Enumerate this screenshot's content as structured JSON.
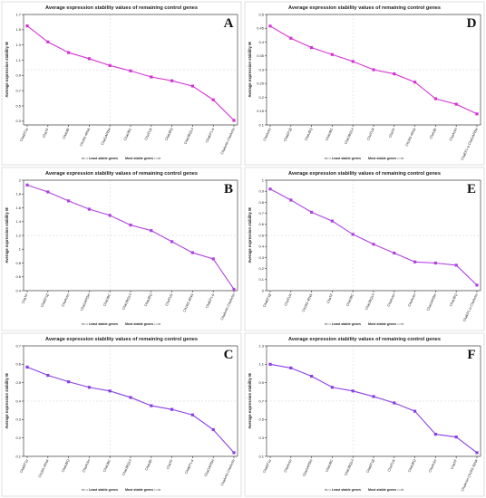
{
  "figure": {
    "footer": {
      "left": "<:::: Least stable genes",
      "right": "Most stable genes ::::>"
    }
  },
  "chart_data": [
    {
      "letter": "A",
      "type": "line",
      "title": "Average expression stability values of remaining control genes",
      "xlabel": "",
      "ylabel": "Average expression stability M",
      "ylim": [
        0.25,
        1.7
      ],
      "yticks": [
        0.3,
        0.5,
        0.7,
        0.9,
        1.1,
        1.3,
        1.5,
        1.7
      ],
      "color": "#d633d6",
      "categories": [
        "ChaEF1α",
        "ChaTF",
        "ChaUBi",
        "Ch18S rRNA",
        "ChaGAPDH",
        "ChaUBC",
        "ChaTUA",
        "ChaUBQ",
        "ChaUBQ14",
        "ChaEF1-α",
        "ChaActin ChaActin"
      ],
      "values": [
        1.55,
        1.34,
        1.2,
        1.12,
        1.03,
        0.96,
        0.88,
        0.83,
        0.76,
        0.58,
        0.31
      ]
    },
    {
      "letter": "D",
      "type": "line",
      "title": "Average expression stability values of remaining control genes",
      "xlabel": "",
      "ylabel": "Average expression stability M",
      "ylim": [
        0.1,
        0.5
      ],
      "yticks": [
        0.1,
        0.15,
        0.2,
        0.25,
        0.3,
        0.35,
        0.4,
        0.45,
        0.5
      ],
      "color": "#d633d6",
      "categories": [
        "ChaActin",
        "ChaEF1β",
        "ChaUBQ",
        "ChaUBC",
        "ChaUBQ14",
        "ChaTUA",
        "ChaTF",
        "Ch18S rRNA",
        "ChaUBi",
        "ChaActin",
        "ChaEF1-α ChaGAPDH"
      ],
      "values": [
        0.458,
        0.414,
        0.38,
        0.355,
        0.33,
        0.3,
        0.285,
        0.255,
        0.195,
        0.175,
        0.14
      ]
    },
    {
      "letter": "B",
      "type": "line",
      "title": "Average expression stability values of remaining control genes",
      "xlabel": "",
      "ylabel": "Average expression stability M",
      "ylim": [
        0.4,
        2.0
      ],
      "yticks": [
        0.4,
        0.6,
        0.8,
        1.0,
        1.2,
        1.4,
        1.6,
        1.8,
        2.0
      ],
      "color": "#b042e0",
      "categories": [
        "ChaTF",
        "ChaEF1β",
        "ChaActin",
        "ChaGAPDH",
        "ChaUBC",
        "ChaUBQ14",
        "ChaUBQ",
        "ChaTUA",
        "Ch18S rRNA",
        "ChaEF1-α",
        "ChaActin ChaActin"
      ],
      "values": [
        1.93,
        1.83,
        1.7,
        1.58,
        1.49,
        1.35,
        1.27,
        1.11,
        0.95,
        0.86,
        0.42
      ]
    },
    {
      "letter": "E",
      "type": "line",
      "title": "Average expression stability values of remaining control genes",
      "xlabel": "",
      "ylabel": "Average expression stability M",
      "ylim": [
        0.0,
        1.0
      ],
      "yticks": [
        0.0,
        0.1,
        0.2,
        0.3,
        0.4,
        0.5,
        0.6,
        0.7,
        0.8,
        0.9,
        1.0
      ],
      "color": "#b042e0",
      "categories": [
        "ChaEF1β",
        "ChaTUA",
        "Ch18S rRNA",
        "ChaTF",
        "ChaUBC",
        "ChaUBQ14",
        "ChaActin",
        "ChaActin",
        "ChaGAPDH",
        "ChaUBQ",
        "ChaEF1-α ChaActin"
      ],
      "values": [
        0.92,
        0.82,
        0.71,
        0.63,
        0.51,
        0.42,
        0.34,
        0.26,
        0.25,
        0.23,
        0.05
      ]
    },
    {
      "letter": "C",
      "type": "line",
      "title": "Average expression stability values of remaining control genes",
      "xlabel": "",
      "ylabel": "Average expression stability M",
      "ylim": [
        0.1,
        0.7
      ],
      "yticks": [
        0.1,
        0.2,
        0.3,
        0.4,
        0.5,
        0.6,
        0.7
      ],
      "color": "#8a3fe6",
      "categories": [
        "ChaEF1α",
        "Ch18S rRNA",
        "ChaUBQ",
        "ChaActin",
        "ChaUBC",
        "ChaUBQ14",
        "ChaUBi",
        "ChaTF",
        "ChaEF1-α",
        "ChaGAPDH",
        "ChaActin ChaActin"
      ],
      "values": [
        0.585,
        0.54,
        0.505,
        0.475,
        0.455,
        0.42,
        0.375,
        0.355,
        0.325,
        0.245,
        0.12
      ]
    },
    {
      "letter": "F",
      "type": "line",
      "title": "Average expression stability values of remaining control genes",
      "xlabel": "",
      "ylabel": "Average expression stability M",
      "ylim": [
        0.1,
        1.3
      ],
      "yticks": [
        0.1,
        0.3,
        0.5,
        0.7,
        0.9,
        1.1,
        1.3
      ],
      "color": "#8a3fe6",
      "categories": [
        "ChaEF1α",
        "ChaActin",
        "ChaGAPDH",
        "ChaUBC",
        "ChaUBQ14",
        "ChaEF1β",
        "ChaTUA",
        "ChaUBQ",
        "ChaActin",
        "ChaTF",
        "ChaActin Ch18S rRNA"
      ],
      "values": [
        1.1,
        1.06,
        0.97,
        0.85,
        0.81,
        0.75,
        0.68,
        0.59,
        0.34,
        0.31,
        0.14
      ]
    }
  ]
}
